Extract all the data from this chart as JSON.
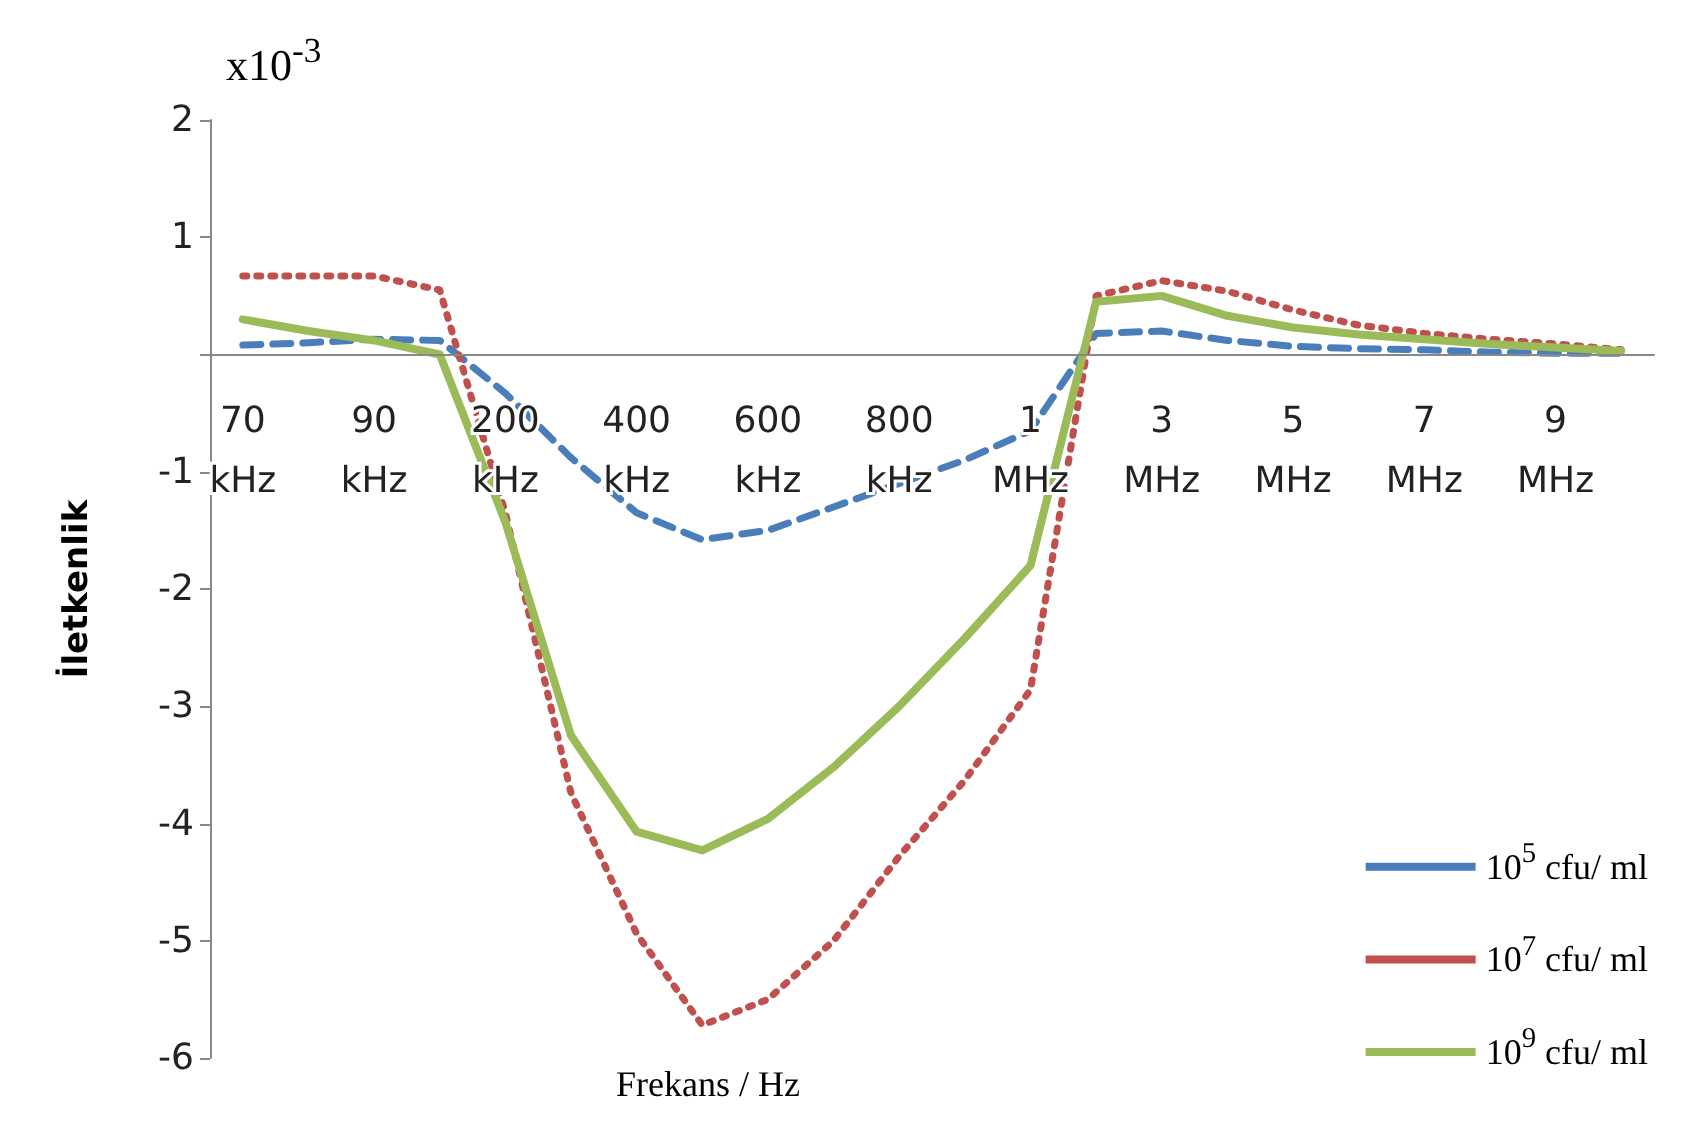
{
  "chart_data": {
    "type": "line",
    "ylabel": "İletkenlik",
    "xlabel": "Frekans / Hz",
    "annotations": [
      "x10$^{-3}$"
    ],
    "categories": [
      "70 kHz",
      null,
      "90 kHz",
      null,
      "200 kHz",
      null,
      "400 kHz",
      null,
      "600 kHz",
      null,
      "800 kHz",
      null,
      "1 MHz",
      null,
      "3 MHz",
      null,
      "5 MHz",
      null,
      "7 MHz",
      null,
      "9 MHz",
      null
    ],
    "ylim": [
      -6,
      2
    ],
    "yticks": [
      2,
      1,
      {
        "value": 0,
        "label": null
      },
      -1,
      -2,
      -3,
      -4,
      -5,
      -6
    ],
    "legend": "bottom right",
    "marker": "none",
    "series": [
      {
        "name": "10$^{5}$ cfu/ ml",
        "color": "#4a7ebb",
        "line_style": "dashed",
        "values": [
          0.08,
          0.1,
          0.13,
          0.12,
          -0.33,
          -0.88,
          -1.35,
          -1.58,
          -1.5,
          -1.3,
          -1.1,
          -0.9,
          -0.65,
          0.18,
          0.2,
          0.12,
          0.07,
          0.05,
          0.04,
          0.02,
          0.01,
          0.01
        ]
      },
      {
        "name": "10$^{7}$ cfu/ ml",
        "color": "#c0504d",
        "line_style": "dotted",
        "values": [
          0.67,
          0.67,
          0.67,
          0.55,
          -1.35,
          -3.74,
          -4.94,
          -5.72,
          -5.5,
          -5.0,
          -4.28,
          -3.63,
          -2.86,
          0.5,
          0.63,
          0.54,
          0.38,
          0.25,
          0.18,
          0.13,
          0.09,
          0.04
        ]
      },
      {
        "name": "10$^{9}$ cfu/ ml",
        "color": "#9bbb59",
        "line_style": "solid",
        "values": [
          0.3,
          0.2,
          0.12,
          0,
          -1.43,
          -3.25,
          -4.07,
          -4.23,
          -3.96,
          -3.52,
          -3.0,
          -2.42,
          -1.8,
          0.45,
          0.5,
          0.33,
          0.23,
          0.17,
          0.13,
          0.09,
          0.06,
          0.03
        ]
      }
    ]
  }
}
